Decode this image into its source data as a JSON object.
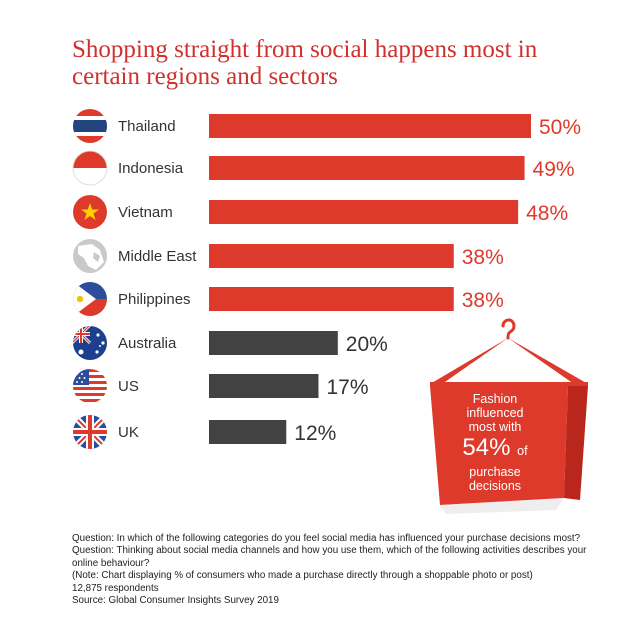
{
  "title": "Shopping straight from social happens most in certain regions and sectors",
  "chart_data": {
    "type": "bar",
    "orientation": "horizontal",
    "categories": [
      "Thailand",
      "Indonesia",
      "Vietnam",
      "Middle East",
      "Philippines",
      "Australia",
      "US",
      "UK"
    ],
    "values": [
      50,
      49,
      48,
      38,
      38,
      20,
      17,
      12
    ],
    "value_labels": [
      "50%",
      "49%",
      "48%",
      "38%",
      "38%",
      "20%",
      "17%",
      "12%"
    ],
    "unit": "%",
    "xlim": [
      0,
      50
    ],
    "highlight_count": 5,
    "colors": {
      "highlight": "#de3a2b",
      "other": "#424242",
      "label_highlight": "#de3a2b",
      "label_other": "#333333"
    }
  },
  "flags": [
    "thailand-flag-icon",
    "indonesia-flag-icon",
    "vietnam-flag-icon",
    "middle-east-map-icon",
    "philippines-flag-icon",
    "australia-flag-icon",
    "us-flag-icon",
    "uk-flag-icon"
  ],
  "callout": {
    "line1": "Fashion",
    "line2": "influenced",
    "line3": "most with",
    "big": "54%",
    "of": "of",
    "line5": "purchase",
    "line6": "decisions",
    "color": "#de3a2b"
  },
  "footnote": {
    "q1": "Question: In which of the following categories do you feel social media has influenced your purchase decisions most?  Question: Thinking about social media channels and how you use them, which of the following activities describes your online behaviour?",
    "note": "(Note: Chart displaying % of consumers who made a purchase directly through a shoppable photo or post)",
    "respondents": "12,875 respondents",
    "source": "Source: Global Consumer Insights Survey 2019"
  }
}
